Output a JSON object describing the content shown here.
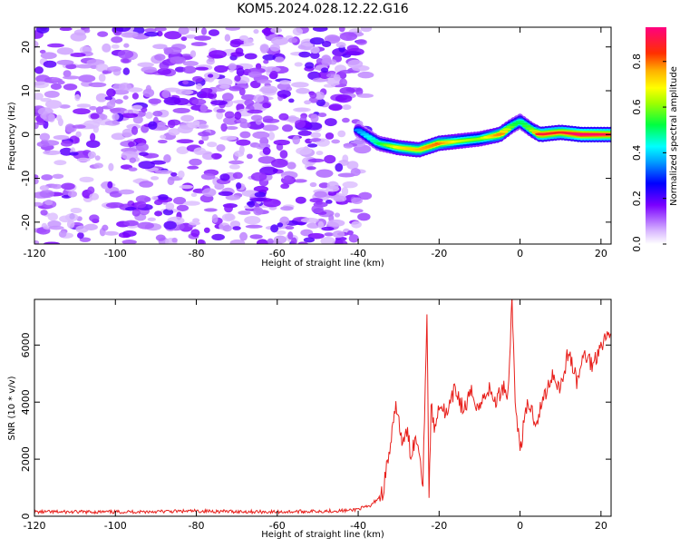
{
  "title": "KOM5.2024.028.12.22.G16",
  "chart_data": [
    {
      "type": "heatmap",
      "xlabel": "Height of straight line (km)",
      "ylabel": "Frequency (Hz)",
      "xlim": [
        -120,
        22.5
      ],
      "ylim": [
        -25,
        24.5
      ],
      "x_ticks": [
        -120,
        -100,
        -80,
        -60,
        -40,
        -20,
        0,
        20
      ],
      "y_ticks": [
        -20,
        -10,
        0,
        10,
        20
      ],
      "colorbar": {
        "label": "Normalized spectral amplitude",
        "range": [
          0,
          0.95
        ],
        "ticks": [
          0.0,
          0.2,
          0.4,
          0.6,
          0.8
        ]
      },
      "noise_region_x": [
        -120,
        -38
      ],
      "signal_track": {
        "x": [
          -40,
          -35,
          -30,
          -25,
          -20,
          -15,
          -10,
          -5,
          -2,
          0,
          3,
          5,
          10,
          15,
          22.5
        ],
        "y": [
          1,
          -2,
          -3,
          -3.5,
          -2,
          -1.5,
          -1,
          0,
          2,
          3,
          1,
          0,
          0.5,
          0,
          0
        ],
        "amplitude": [
          0.35,
          0.5,
          0.7,
          0.75,
          0.8,
          0.65,
          0.6,
          0.8,
          0.55,
          0.5,
          0.6,
          0.9,
          0.85,
          0.95,
          0.9
        ]
      }
    },
    {
      "type": "line",
      "xlabel": "Height of straight line (km)",
      "ylabel": "SNR (10 * v/v)",
      "xlim": [
        -120,
        22.5
      ],
      "ylim": [
        0,
        7600
      ],
      "x_ticks": [
        -120,
        -100,
        -80,
        -60,
        -40,
        -20,
        0,
        20
      ],
      "y_ticks": [
        0,
        2000,
        4000,
        6000
      ],
      "series_color": "#e8201c",
      "x": [
        -120,
        -100,
        -80,
        -60,
        -42,
        -37,
        -34,
        -32,
        -30.5,
        -29,
        -28,
        -27,
        -26,
        -25,
        -24,
        -23,
        -22.5,
        -22,
        -21,
        -20,
        -18,
        -16,
        -14,
        -12,
        -10,
        -8,
        -6,
        -4,
        -3,
        -2,
        -1,
        0,
        2,
        4,
        6,
        8,
        10,
        12,
        14,
        16,
        18,
        20,
        22.5
      ],
      "y": [
        150,
        150,
        180,
        150,
        200,
        350,
        800,
        2500,
        3900,
        2400,
        3000,
        2200,
        2700,
        2500,
        1200,
        7200,
        600,
        3800,
        3000,
        4000,
        3500,
        4500,
        3700,
        4300,
        3800,
        4500,
        4000,
        4600,
        4200,
        7600,
        3500,
        2400,
        4000,
        3300,
        4200,
        5000,
        4500,
        5800,
        4700,
        5700,
        5300,
        6100,
        6400
      ]
    }
  ]
}
